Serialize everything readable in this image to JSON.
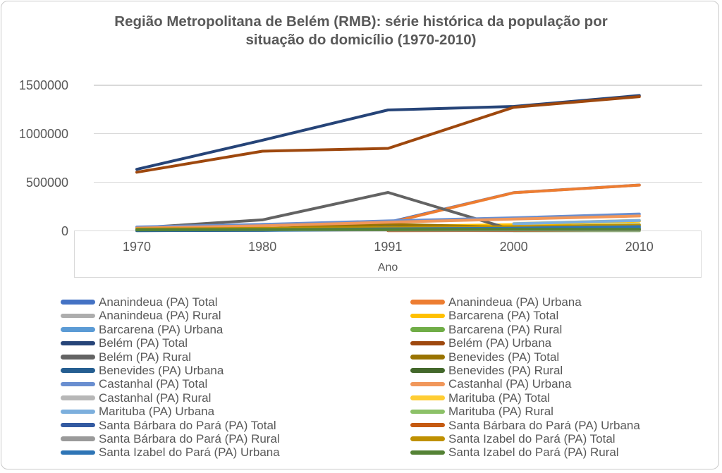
{
  "header": {
    "line1": "Região Metropolitana de Belém (RMB): série histórica da população por",
    "line2": "situação do domicílio (1970-2010)"
  },
  "chart_data": {
    "type": "line",
    "title": "Região Metropolitana de Belém (RMB): série histórica da população por situação do domicílio (1970-2010)",
    "xlabel": "Ano",
    "ylabel": "",
    "x": [
      1970,
      1980,
      1991,
      2000,
      2010
    ],
    "yticks": [
      0,
      500000,
      1000000,
      1500000
    ],
    "ylim": [
      0,
      1500000
    ],
    "grid": true,
    "legend_position": "bottom",
    "legend_columns": 2,
    "series": [
      {
        "name": "Ananindeua (PA) Total",
        "color": "#4472C4",
        "values": [
          22508,
          65878,
          88151,
          393569,
          471980
        ]
      },
      {
        "name": "Ananindeua (PA) Urbana",
        "color": "#ED7D31",
        "values": [
          17879,
          62576,
          80503,
          392627,
          470819
        ]
      },
      {
        "name": "Ananindeua (PA) Rural",
        "color": "#ADADAD",
        "values": [
          4629,
          3302,
          7648,
          942,
          1161
        ]
      },
      {
        "name": "Barcarena (PA) Total",
        "color": "#FFC000",
        "values": [
          17498,
          20021,
          45946,
          63268,
          99859
        ]
      },
      {
        "name": "Barcarena (PA) Urbana",
        "color": "#5B9BD5",
        "values": [
          2921,
          4278,
          14761,
          23193,
          36297
        ]
      },
      {
        "name": "Barcarena (PA) Rural",
        "color": "#70AD47",
        "values": [
          14577,
          15743,
          31185,
          40075,
          63562
        ]
      },
      {
        "name": "Belém (PA) Total",
        "color": "#264478",
        "values": [
          633374,
          933280,
          1244689,
          1280614,
          1393399
        ]
      },
      {
        "name": "Belém (PA) Urbana",
        "color": "#9E480E",
        "values": [
          603574,
          820292,
          849187,
          1272354,
          1381475
        ]
      },
      {
        "name": "Belém (PA) Rural",
        "color": "#636363",
        "values": [
          29800,
          112988,
          395502,
          8260,
          11924
        ]
      },
      {
        "name": "Benevides (PA) Total",
        "color": "#997300",
        "values": [
          8542,
          22086,
          68465,
          35546,
          51651
        ]
      },
      {
        "name": "Benevides (PA) Urbana",
        "color": "#255E91",
        "values": [
          1670,
          6367,
          37397,
          25584,
          28912
        ]
      },
      {
        "name": "Benevides (PA) Rural",
        "color": "#43682B",
        "values": [
          6872,
          15719,
          31068,
          9962,
          22739
        ]
      },
      {
        "name": "Castanhal (PA) Total",
        "color": "#698ED0",
        "values": [
          40028,
          65997,
          102071,
          134496,
          173149
        ]
      },
      {
        "name": "Castanhal (PA) Urbana",
        "color": "#F1975A",
        "values": [
          28080,
          52605,
          88606,
          121249,
          153378
        ]
      },
      {
        "name": "Castanhal (PA) Rural",
        "color": "#B7B7B7",
        "values": [
          11948,
          13392,
          13465,
          13247,
          19771
        ]
      },
      {
        "name": "Marituba (PA) Total",
        "color": "#FFCD33",
        "values": [
          null,
          null,
          null,
          74429,
          108246
        ]
      },
      {
        "name": "Marituba (PA) Urbana",
        "color": "#7CAFDD",
        "values": [
          null,
          null,
          null,
          73064,
          107123
        ]
      },
      {
        "name": "Marituba (PA) Rural",
        "color": "#8CC168",
        "values": [
          null,
          null,
          null,
          1365,
          1123
        ]
      },
      {
        "name": "Santa Bárbara do Pará (PA) Total",
        "color": "#335AA1",
        "values": [
          null,
          null,
          9865,
          11378,
          17141
        ]
      },
      {
        "name": "Santa Bárbara do Pará (PA) Urbana",
        "color": "#C55A11",
        "values": [
          null,
          null,
          2279,
          3607,
          9725
        ]
      },
      {
        "name": "Santa Bárbara do Pará (PA) Rural",
        "color": "#9A9A9A",
        "values": [
          null,
          null,
          7586,
          7771,
          7416
        ]
      },
      {
        "name": "Santa Izabel do Pará (PA) Total",
        "color": "#BF9000",
        "values": [
          18912,
          26221,
          33135,
          43227,
          59466
        ]
      },
      {
        "name": "Santa Izabel do Pará (PA) Urbana",
        "color": "#2E75B6",
        "values": [
          7999,
          12327,
          19867,
          27407,
          43548
        ]
      },
      {
        "name": "Santa Izabel do Pará (PA) Rural",
        "color": "#548235",
        "values": [
          10913,
          13894,
          13268,
          15820,
          15918
        ]
      }
    ]
  }
}
